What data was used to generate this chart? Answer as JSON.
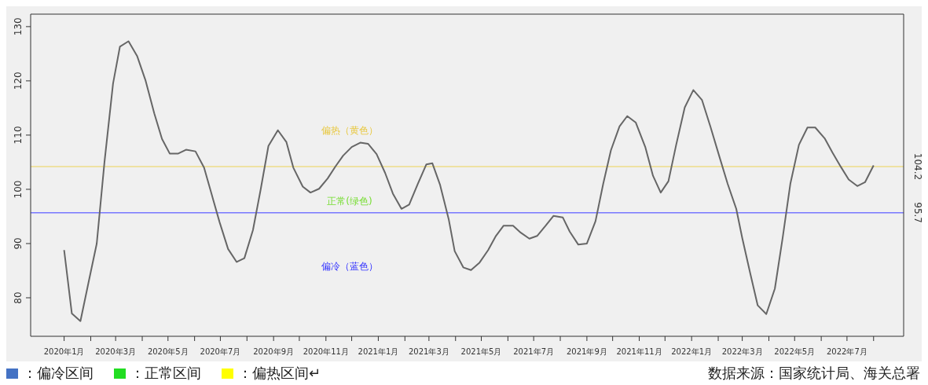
{
  "chart_data": {
    "type": "line",
    "x": [
      "2020-01-01",
      "2020-01-10",
      "2020-01-20",
      "2020-01-29",
      "2020-02-08",
      "2020-02-17",
      "2020-02-27",
      "2020-03-06",
      "2020-03-16",
      "2020-03-26",
      "2020-04-05",
      "2020-04-15",
      "2020-04-24",
      "2020-05-03",
      "2020-05-13",
      "2020-05-22",
      "2020-06-02",
      "2020-06-12",
      "2020-06-21",
      "2020-06-30",
      "2020-07-10",
      "2020-07-20",
      "2020-07-29",
      "2020-08-08",
      "2020-08-17",
      "2020-08-26",
      "2020-09-06",
      "2020-09-16",
      "2020-09-24",
      "2020-10-05",
      "2020-10-14",
      "2020-10-24",
      "2020-11-03",
      "2020-11-12",
      "2020-11-21",
      "2020-12-01",
      "2020-12-11",
      "2020-12-20",
      "2020-12-30",
      "2021-01-09",
      "2021-01-18",
      "2021-01-28",
      "2021-02-06",
      "2021-02-16",
      "2021-02-26",
      "2021-03-05",
      "2021-03-14",
      "2021-03-24",
      "2021-03-31",
      "2021-04-10",
      "2021-04-19",
      "2021-04-29",
      "2021-05-09",
      "2021-05-18",
      "2021-05-27",
      "2021-06-07",
      "2021-06-16",
      "2021-06-26",
      "2021-07-05",
      "2021-07-15",
      "2021-07-24",
      "2021-08-04",
      "2021-08-12",
      "2021-08-22",
      "2021-09-01",
      "2021-09-11",
      "2021-09-20",
      "2021-09-29",
      "2021-10-09",
      "2021-10-18",
      "2021-10-28",
      "2021-11-08",
      "2021-11-17",
      "2021-11-26",
      "2021-12-05",
      "2021-12-14",
      "2021-12-24",
      "2022-01-03",
      "2022-01-13",
      "2022-01-23",
      "2022-02-03",
      "2022-02-12",
      "2022-02-22",
      "2022-03-01",
      "2022-03-10",
      "2022-03-19",
      "2022-03-29",
      "2022-04-08",
      "2022-04-17",
      "2022-04-26",
      "2022-05-06",
      "2022-05-16",
      "2022-05-25",
      "2022-06-05",
      "2022-06-14",
      "2022-06-24",
      "2022-07-03",
      "2022-07-13",
      "2022-07-22",
      "2022-08-01"
    ],
    "series": [
      {
        "color": "#666666",
        "values": [
          88.8,
          77.1,
          75.7,
          82.5,
          90,
          105,
          119.5,
          126.3,
          127.3,
          124.6,
          120,
          114,
          109.3,
          106.6,
          106.6,
          107.3,
          107,
          104,
          99,
          94,
          89,
          86.6,
          87.3,
          92.5,
          100,
          108,
          110.9,
          108.7,
          104,
          100.5,
          99.4,
          100.1,
          102,
          104.2,
          106.2,
          107.8,
          108.6,
          108.4,
          106.5,
          103,
          99.2,
          96.4,
          97.2,
          101,
          104.6,
          104.8,
          100.8,
          94.5,
          88.6,
          85.6,
          85.1,
          86.5,
          88.8,
          91.4,
          93.3,
          93.3,
          92.0,
          90.9,
          91.4,
          93.3,
          95.1,
          94.8,
          92.2,
          89.8,
          90.0,
          94.1,
          101.0,
          107.2,
          111.6,
          113.5,
          112.3,
          107.8,
          102.5,
          99.4,
          101.5,
          108.2,
          115.1,
          118.3,
          116.5,
          111.5,
          105.7,
          101.0,
          96.4,
          91.0,
          84.7,
          78.6,
          77.0,
          81.7,
          91.0,
          101.0,
          108.2,
          111.4,
          111.4,
          109.4,
          106.8,
          104.1,
          101.8,
          100.6,
          101.3,
          104.4
        ]
      }
    ],
    "xlim": [
      "2019-11-23",
      "2022-09-05"
    ],
    "xticks": [
      {
        "value": "2020-01-01",
        "label": "2020年1月"
      },
      {
        "value": "2020-02-01",
        "label": null
      },
      {
        "value": "2020-03-01",
        "label": "2020年3月"
      },
      {
        "value": "2020-04-01",
        "label": null
      },
      {
        "value": "2020-05-01",
        "label": "2020年5月"
      },
      {
        "value": "2020-06-01",
        "label": null
      },
      {
        "value": "2020-07-01",
        "label": "2020年7月"
      },
      {
        "value": "2020-08-01",
        "label": null
      },
      {
        "value": "2020-09-01",
        "label": "2020年9月"
      },
      {
        "value": "2020-10-01",
        "label": null
      },
      {
        "value": "2020-11-01",
        "label": "2020年11月"
      },
      {
        "value": "2020-12-01",
        "label": null
      },
      {
        "value": "2021-01-01",
        "label": "2021年1月"
      },
      {
        "value": "2021-02-01",
        "label": null
      },
      {
        "value": "2021-03-01",
        "label": "2021年3月"
      },
      {
        "value": "2021-04-01",
        "label": null
      },
      {
        "value": "2021-05-01",
        "label": "2021年5月"
      },
      {
        "value": "2021-06-01",
        "label": null
      },
      {
        "value": "2021-07-01",
        "label": "2021年7月"
      },
      {
        "value": "2021-08-01",
        "label": null
      },
      {
        "value": "2021-09-01",
        "label": "2021年9月"
      },
      {
        "value": "2021-10-01",
        "label": null
      },
      {
        "value": "2021-11-01",
        "label": "2021年11月"
      },
      {
        "value": "2021-12-01",
        "label": null
      },
      {
        "value": "2022-01-01",
        "label": "2022年1月"
      },
      {
        "value": "2022-02-01",
        "label": null
      },
      {
        "value": "2022-03-01",
        "label": "2022年3月"
      },
      {
        "value": "2022-04-01",
        "label": null
      },
      {
        "value": "2022-05-01",
        "label": "2022年5月"
      },
      {
        "value": "2022-06-01",
        "label": null
      },
      {
        "value": "2022-07-01",
        "label": "2022年7月"
      },
      {
        "value": "2022-08-01",
        "label": null
      }
    ],
    "ylim": [
      72.9,
      132.3
    ],
    "yticks": [
      80,
      90,
      100,
      110,
      120,
      130
    ],
    "marker": "none",
    "line_style": "solid",
    "ref_lines": [
      {
        "axis": "y",
        "value": 104.2,
        "label": "104.2",
        "color": "#eedd88"
      },
      {
        "axis": "y",
        "value": 95.7,
        "label": "95.7",
        "color": "#7777ff"
      }
    ],
    "annotations": [
      "偏热（黄色）",
      "正常(绿色)",
      "偏冷（蓝色）",
      "：偏冷区间",
      "：正常区间",
      "：偏热区间↵",
      "数据来源：国家统计局、海关总署"
    ]
  }
}
